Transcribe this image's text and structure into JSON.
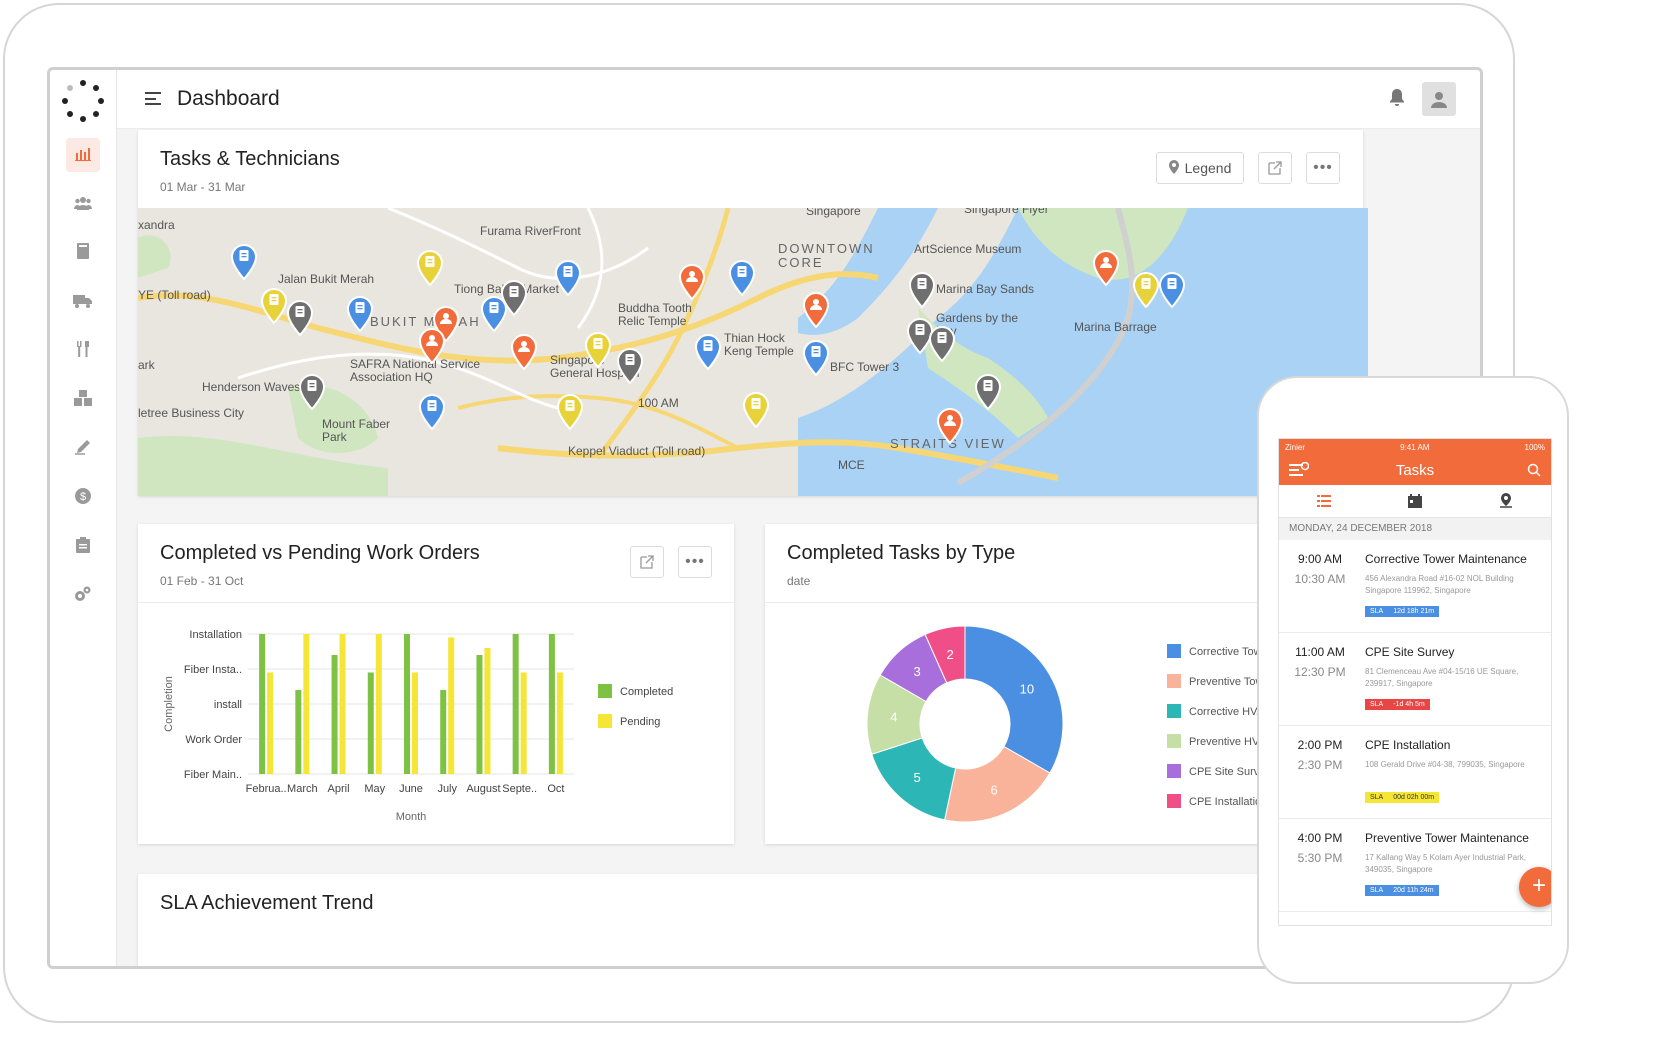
{
  "topbar": {
    "title": "Dashboard"
  },
  "colors": {
    "accent": "#f26b3a",
    "completed": "#7dc242",
    "pending": "#f5e536"
  },
  "sidebar": {
    "items": [
      {
        "icon": "bar-chart-icon",
        "active": true
      },
      {
        "icon": "users-icon"
      },
      {
        "icon": "book-icon"
      },
      {
        "icon": "truck-icon"
      },
      {
        "icon": "tools-icon"
      },
      {
        "icon": "boxes-icon"
      },
      {
        "icon": "pen-icon"
      },
      {
        "icon": "dollar-icon"
      },
      {
        "icon": "clipboard-icon"
      },
      {
        "icon": "gears-icon"
      }
    ]
  },
  "map_card": {
    "title": "Tasks & Technicians",
    "subtitle": "01 Mar - 31 Mar",
    "legend_label": "Legend",
    "labels": [
      {
        "text": "xandra"
      },
      {
        "text": "Furama RiverFront"
      },
      {
        "text": "Singapore"
      },
      {
        "text": "Singapore Flyer"
      },
      {
        "text": "DOWNTOWN CORE"
      },
      {
        "text": "ArtScience Museum"
      },
      {
        "text": "Jalan Bukit Merah"
      },
      {
        "text": "YE (Toll road)"
      },
      {
        "text": "Tiong Bahru Market"
      },
      {
        "text": "BUKIT MERAH"
      },
      {
        "text": "Buddha Tooth Relic Temple"
      },
      {
        "text": "Marina Bay Sands"
      },
      {
        "text": "Gardens by the Bay"
      },
      {
        "text": "Marina Barrage"
      },
      {
        "text": "Thian Hock Keng Temple"
      },
      {
        "text": "SAFRA National Service Association HQ"
      },
      {
        "text": "Singapore General Hospital"
      },
      {
        "text": "BFC Tower 3"
      },
      {
        "text": "Henderson Waves"
      },
      {
        "text": "100 AM"
      },
      {
        "text": "letree Business City"
      },
      {
        "text": "Mount Faber Park"
      },
      {
        "text": "Keppel Viaduct (Toll road)"
      },
      {
        "text": "STRAITS VIEW"
      },
      {
        "text": "MCE"
      },
      {
        "text": "ark"
      }
    ],
    "pins": [
      {
        "color": "#4a8fe2",
        "kind": "task"
      },
      {
        "color": "#e8d23a",
        "kind": "task"
      },
      {
        "color": "#4a8fe2",
        "kind": "task"
      },
      {
        "color": "#6f6f6f",
        "kind": "task"
      },
      {
        "color": "#e8d23a",
        "kind": "task"
      },
      {
        "color": "#6f6f6f",
        "kind": "task"
      },
      {
        "color": "#4a8fe2",
        "kind": "task"
      },
      {
        "color": "#f26b3a",
        "kind": "tech"
      },
      {
        "color": "#4a8fe2",
        "kind": "task"
      },
      {
        "color": "#f26b3a",
        "kind": "tech"
      },
      {
        "color": "#f26b3a",
        "kind": "tech"
      },
      {
        "color": "#4a8fe2",
        "kind": "task"
      },
      {
        "color": "#f26b3a",
        "kind": "tech"
      },
      {
        "color": "#6f6f6f",
        "kind": "task"
      },
      {
        "color": "#6f6f6f",
        "kind": "task"
      },
      {
        "color": "#6f6f6f",
        "kind": "task"
      },
      {
        "color": "#f26b3a",
        "kind": "tech"
      },
      {
        "color": "#e8d23a",
        "kind": "task"
      },
      {
        "color": "#4a8fe2",
        "kind": "task"
      },
      {
        "color": "#e8d23a",
        "kind": "task"
      },
      {
        "color": "#f26b3a",
        "kind": "tech"
      },
      {
        "color": "#6f6f6f",
        "kind": "task"
      },
      {
        "color": "#6f6f6f",
        "kind": "task"
      },
      {
        "color": "#4a8fe2",
        "kind": "task"
      },
      {
        "color": "#4a8fe2",
        "kind": "task"
      },
      {
        "color": "#4a8fe2",
        "kind": "task"
      },
      {
        "color": "#e8d23a",
        "kind": "task"
      },
      {
        "color": "#6f6f6f",
        "kind": "task"
      },
      {
        "color": "#f26b3a",
        "kind": "tech"
      },
      {
        "color": "#e8d23a",
        "kind": "task"
      },
      {
        "color": "#4a8fe2",
        "kind": "task"
      }
    ]
  },
  "bar_card": {
    "title": "Completed vs Pending Work Orders",
    "subtitle": "01 Feb - 31 Oct"
  },
  "pie_card": {
    "title": "Completed Tasks by Type",
    "subtitle": "date"
  },
  "sla_card": {
    "title": "SLA Achievement Trend"
  },
  "chart_data": [
    {
      "type": "bar",
      "title": "Completed vs Pending Work Orders",
      "xlabel": "Month",
      "ylabel": "Completion",
      "categories": [
        "Februa..",
        "March",
        "April",
        "May",
        "June",
        "July",
        "August",
        "Septe..",
        "Oct"
      ],
      "y_categories": [
        "Fiber Main..",
        "Work Order",
        "install",
        "Fiber Insta..",
        "Installation"
      ],
      "ylim": [
        0,
        4
      ],
      "series": [
        {
          "name": "Completed",
          "color": "#7dc242",
          "values": [
            4.0,
            2.4,
            3.4,
            2.9,
            4.0,
            2.4,
            3.4,
            4.0,
            4.0
          ]
        },
        {
          "name": "Pending",
          "color": "#f5e536",
          "values": [
            2.9,
            4.0,
            4.0,
            4.0,
            2.9,
            3.9,
            3.6,
            2.9,
            2.9
          ]
        }
      ],
      "legend_position": "right",
      "grid": true
    },
    {
      "type": "pie",
      "donut": true,
      "title": "Completed Tasks by Type",
      "slices": [
        {
          "label": "Corrective Tow",
          "value": 10,
          "color": "#4a8fe2"
        },
        {
          "label": "Preventive Tow",
          "value": 6,
          "color": "#f8b39a"
        },
        {
          "label": "Corrective HVA",
          "value": 5,
          "color": "#2db6b6"
        },
        {
          "label": "Preventive HVA",
          "value": 4,
          "color": "#c5dfa6"
        },
        {
          "label": "CPE Site Survey",
          "value": 3,
          "color": "#a86fdc"
        },
        {
          "label": "CPE Installation",
          "value": 2,
          "color": "#ef4f86"
        }
      ],
      "legend_position": "right"
    }
  ],
  "phone": {
    "status": {
      "carrier": "Zinier",
      "time": "9:41 AM",
      "battery": "100%"
    },
    "title": "Tasks",
    "date_header": "MONDAY, 24 DECEMBER 2018",
    "tasks": [
      {
        "start": "9:00 AM",
        "end": "10:30 AM",
        "title": "Corrective Tower Maintenance",
        "address": "456 Alexandra Road #16-02 NOL Building Singapore 119962, Singapore",
        "sla_label": "SLA",
        "sla_value": "12d 18h 21m",
        "sla_color": "#4a8fe2",
        "sla_text_color": "#ffffff"
      },
      {
        "start": "11:00 AM",
        "end": "12:30 PM",
        "title": "CPE Site Survey",
        "address": "81 Clemenceau Ave #04-15/16 UE Square, 239917, Singapore",
        "sla_label": "SLA",
        "sla_value": "-1d 4h 5m",
        "sla_color": "#e84545",
        "sla_text_color": "#ffffff"
      },
      {
        "start": "2:00 PM",
        "end": "2:30 PM",
        "title": "CPE Installation",
        "address": "108 Gerald Drive #04-38, 799035, Singapore",
        "sla_label": "SLA",
        "sla_value": "00d 02h 00m",
        "sla_color": "#f5e536",
        "sla_text_color": "#333333"
      },
      {
        "start": "4:00 PM",
        "end": "5:30 PM",
        "title": "Preventive Tower Maintenance",
        "address": "17 Kallang Way 5 Kolam Ayer Industrial Park, 349035, Singapore",
        "sla_label": "SLA",
        "sla_value": "20d 11h 24m",
        "sla_color": "#4a8fe2",
        "sla_text_color": "#ffffff"
      }
    ],
    "fab_label": "+"
  }
}
